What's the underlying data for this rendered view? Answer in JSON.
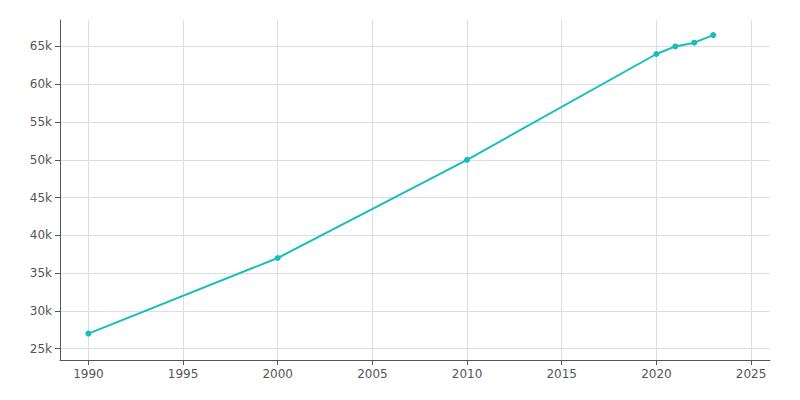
{
  "chart_data": {
    "type": "line",
    "x": [
      1990,
      2000,
      2010,
      2020,
      2021,
      2022,
      2023
    ],
    "values": [
      27000,
      37000,
      50000,
      64000,
      65000,
      65500,
      66500
    ],
    "color": "#17BEBB",
    "marker": "o",
    "xlim": [
      1988.5,
      2026.0
    ],
    "xticks": [
      1990,
      1995,
      2000,
      2005,
      2010,
      2015,
      2020,
      2025
    ],
    "ylim": [
      23500,
      68500
    ],
    "yticks": [
      {
        "value": 25000,
        "label": "25k"
      },
      {
        "value": 30000,
        "label": "30k"
      },
      {
        "value": 35000,
        "label": "35k"
      },
      {
        "value": 40000,
        "label": "40k"
      },
      {
        "value": 45000,
        "label": "45k"
      },
      {
        "value": 50000,
        "label": "50k"
      },
      {
        "value": 55000,
        "label": "55k"
      },
      {
        "value": 60000,
        "label": "60k"
      },
      {
        "value": 65000,
        "label": "65k"
      }
    ],
    "grid": true
  }
}
